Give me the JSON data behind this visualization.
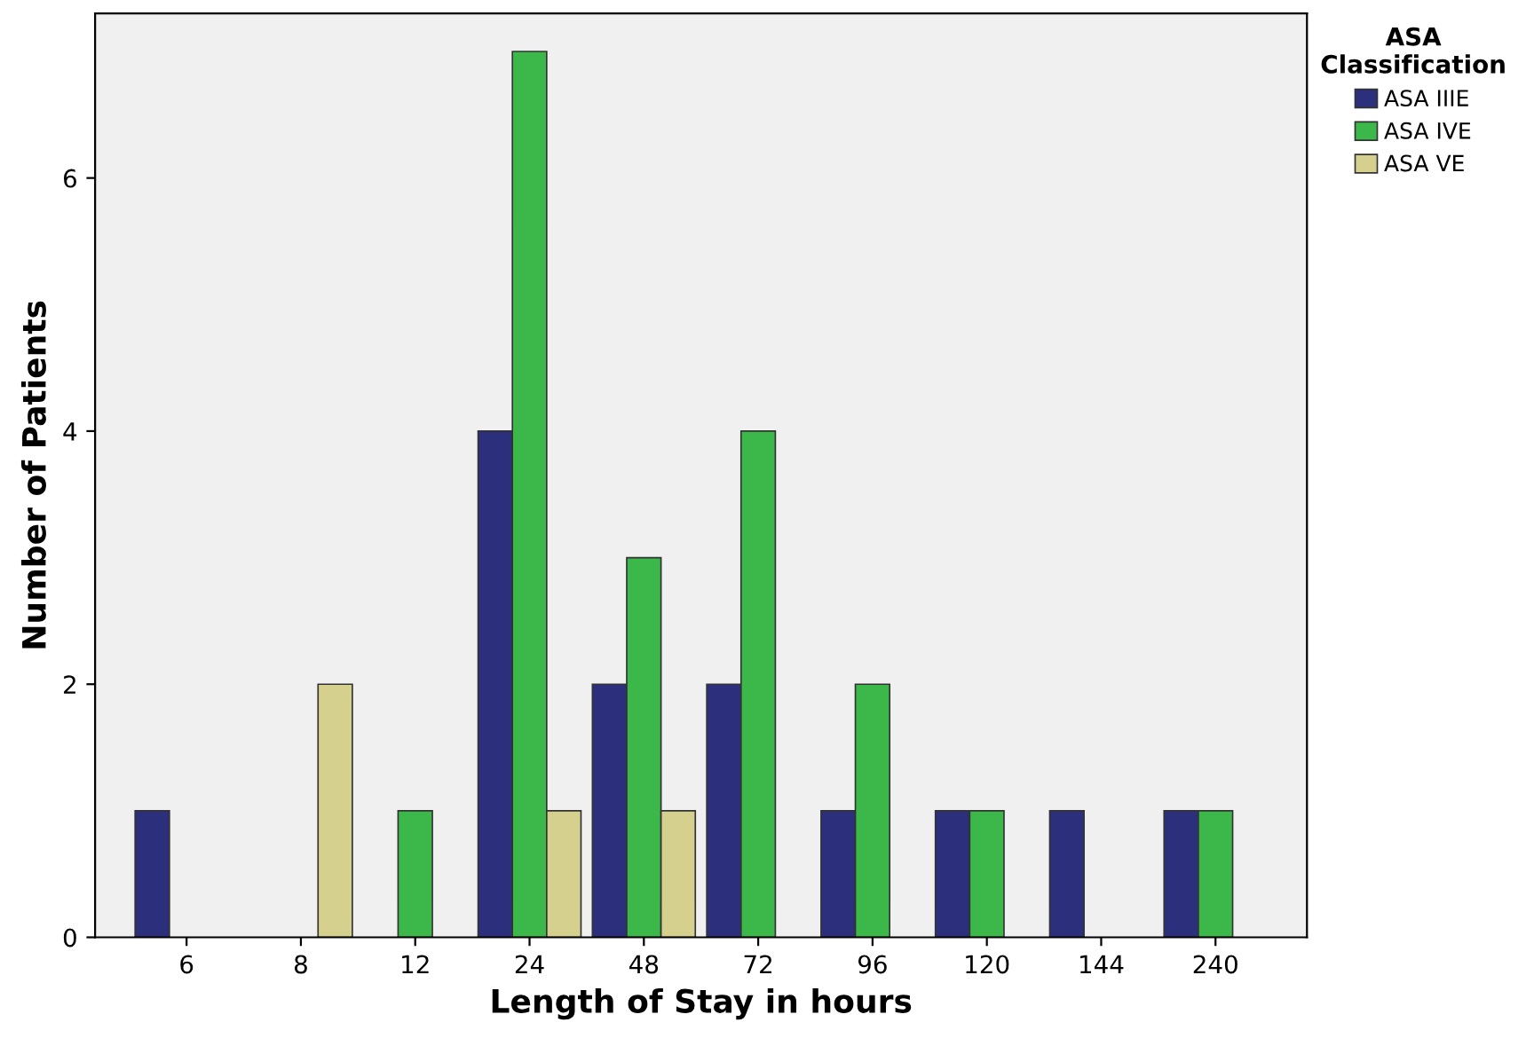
{
  "chart_data": {
    "type": "bar",
    "xlabel": "Length of Stay in hours",
    "ylabel": "Number of Patients",
    "legend_title": "ASA\nClassification",
    "categories": [
      "6",
      "8",
      "12",
      "24",
      "48",
      "72",
      "96",
      "120",
      "144",
      "240"
    ],
    "series": [
      {
        "name": "ASA IIIE",
        "color": "#2b2f7c",
        "values": [
          1,
          0,
          0,
          4,
          2,
          2,
          1,
          1,
          1,
          1
        ]
      },
      {
        "name": "ASA IVE",
        "color": "#3cb84a",
        "values": [
          0,
          0,
          1,
          7,
          3,
          4,
          2,
          1,
          0,
          1
        ]
      },
      {
        "name": "ASA VE",
        "color": "#d6d08e",
        "values": [
          0,
          2,
          0,
          1,
          1,
          0,
          0,
          0,
          0,
          0
        ]
      }
    ],
    "ylim": [
      0,
      7.3
    ],
    "yticks": [
      0,
      2,
      4,
      6
    ],
    "grid": false,
    "legend": "top right"
  }
}
